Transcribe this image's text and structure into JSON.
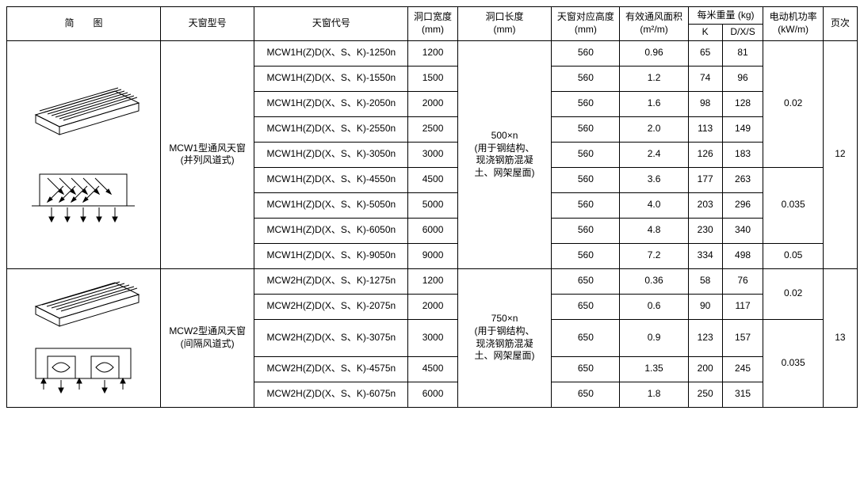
{
  "headers": {
    "diagram": "简　　图",
    "model": "天窗型号",
    "code": "天窗代号",
    "open_w": "洞口宽度",
    "open_w_unit": "(mm)",
    "open_l": "洞口长度",
    "open_l_unit": "(mm)",
    "height": "天窗对应高度",
    "height_unit": "(mm)",
    "vent_area": "有效通风面积",
    "vent_area_unit": "(m²/m)",
    "weight": "每米重量 (kg)",
    "weight_k": "K",
    "weight_dxs": "D/X/S",
    "motor": "电动机功率",
    "motor_unit": "(kW/m)",
    "page": "页次"
  },
  "colwidths": {
    "diagram": 180,
    "model": 110,
    "code": 180,
    "open_w": 58,
    "open_l": 110,
    "height": 80,
    "vent_area": 80,
    "weight_k": 40,
    "weight_dxs": 48,
    "motor": 70,
    "page": 40
  },
  "group1": {
    "model_line1": "MCW1型通风天窗",
    "model_line2": "(并列风道式)",
    "open_l_line1": "500×n",
    "open_l_line2": "(用于钢结构、",
    "open_l_line3": "现浇钢筋混凝",
    "open_l_line4": "土、网架屋面)",
    "page": "12",
    "rows": [
      {
        "code": "MCW1H(Z)D(X、S、K)-1250n",
        "w": "1200",
        "h": "560",
        "area": "0.96",
        "k": "65",
        "dxs": "81"
      },
      {
        "code": "MCW1H(Z)D(X、S、K)-1550n",
        "w": "1500",
        "h": "560",
        "area": "1.2",
        "k": "74",
        "dxs": "96"
      },
      {
        "code": "MCW1H(Z)D(X、S、K)-2050n",
        "w": "2000",
        "h": "560",
        "area": "1.6",
        "k": "98",
        "dxs": "128"
      },
      {
        "code": "MCW1H(Z)D(X、S、K)-2550n",
        "w": "2500",
        "h": "560",
        "area": "2.0",
        "k": "113",
        "dxs": "149"
      },
      {
        "code": "MCW1H(Z)D(X、S、K)-3050n",
        "w": "3000",
        "h": "560",
        "area": "2.4",
        "k": "126",
        "dxs": "183"
      },
      {
        "code": "MCW1H(Z)D(X、S、K)-4550n",
        "w": "4500",
        "h": "560",
        "area": "3.6",
        "k": "177",
        "dxs": "263"
      },
      {
        "code": "MCW1H(Z)D(X、S、K)-5050n",
        "w": "5000",
        "h": "560",
        "area": "4.0",
        "k": "203",
        "dxs": "296"
      },
      {
        "code": "MCW1H(Z)D(X、S、K)-6050n",
        "w": "6000",
        "h": "560",
        "area": "4.8",
        "k": "230",
        "dxs": "340"
      },
      {
        "code": "MCW1H(Z)D(X、S、K)-9050n",
        "w": "9000",
        "h": "560",
        "area": "7.2",
        "k": "334",
        "dxs": "498"
      }
    ],
    "motor1": "0.02",
    "motor2": "0.035",
    "motor3": "0.05"
  },
  "group2": {
    "model_line1": "MCW2型通风天窗",
    "model_line2": "(间隔风道式)",
    "open_l_line1": "750×n",
    "open_l_line2": "(用于钢结构、",
    "open_l_line3": "现浇钢筋混凝",
    "open_l_line4": "土、网架屋面)",
    "page": "13",
    "rows": [
      {
        "code": "MCW2H(Z)D(X、S、K)-1275n",
        "w": "1200",
        "h": "650",
        "area": "0.36",
        "k": "58",
        "dxs": "76"
      },
      {
        "code": "MCW2H(Z)D(X、S、K)-2075n",
        "w": "2000",
        "h": "650",
        "area": "0.6",
        "k": "90",
        "dxs": "117"
      },
      {
        "code": "MCW2H(Z)D(X、S、K)-3075n",
        "w": "3000",
        "h": "650",
        "area": "0.9",
        "k": "123",
        "dxs": "157"
      },
      {
        "code": "MCW2H(Z)D(X、S、K)-4575n",
        "w": "4500",
        "h": "650",
        "area": "1.35",
        "k": "200",
        "dxs": "245"
      },
      {
        "code": "MCW2H(Z)D(X、S、K)-6075n",
        "w": "6000",
        "h": "650",
        "area": "1.8",
        "k": "250",
        "dxs": "315"
      }
    ],
    "motor1": "0.02",
    "motor2": "0.035"
  },
  "style": {
    "border_color": "#000000",
    "background": "#ffffff",
    "font_size_header": 12,
    "font_size_body": 12,
    "row_height_header1": 22,
    "row_height_header2": 16,
    "row_height_body": 32
  }
}
